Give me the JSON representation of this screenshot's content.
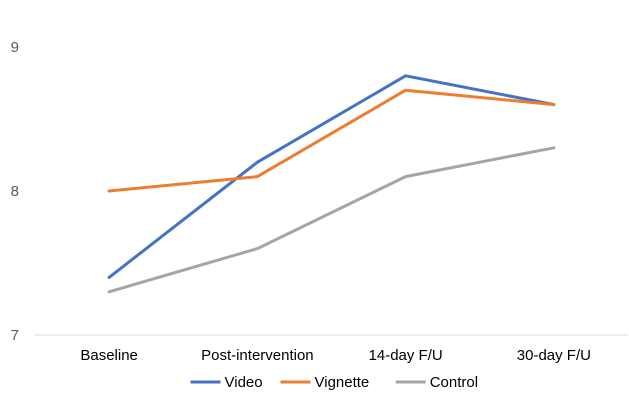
{
  "chart_data": {
    "type": "line",
    "categories": [
      "Baseline",
      "Post-intervention",
      "14-day F/U",
      "30-day F/U"
    ],
    "series": [
      {
        "name": "Video",
        "color": "#4472C4",
        "values": [
          7.4,
          8.2,
          8.8,
          8.6
        ]
      },
      {
        "name": "Vignette",
        "color": "#ED7D31",
        "values": [
          8.0,
          8.1,
          8.7,
          8.6
        ]
      },
      {
        "name": "Control",
        "color": "#A5A5A5",
        "values": [
          7.3,
          7.6,
          8.1,
          8.3
        ]
      }
    ],
    "ylim": [
      7,
      9
    ],
    "yticks": [
      7,
      8,
      9
    ],
    "grid": false,
    "legend": "bottom",
    "axis_color": "#D9D9D9"
  }
}
